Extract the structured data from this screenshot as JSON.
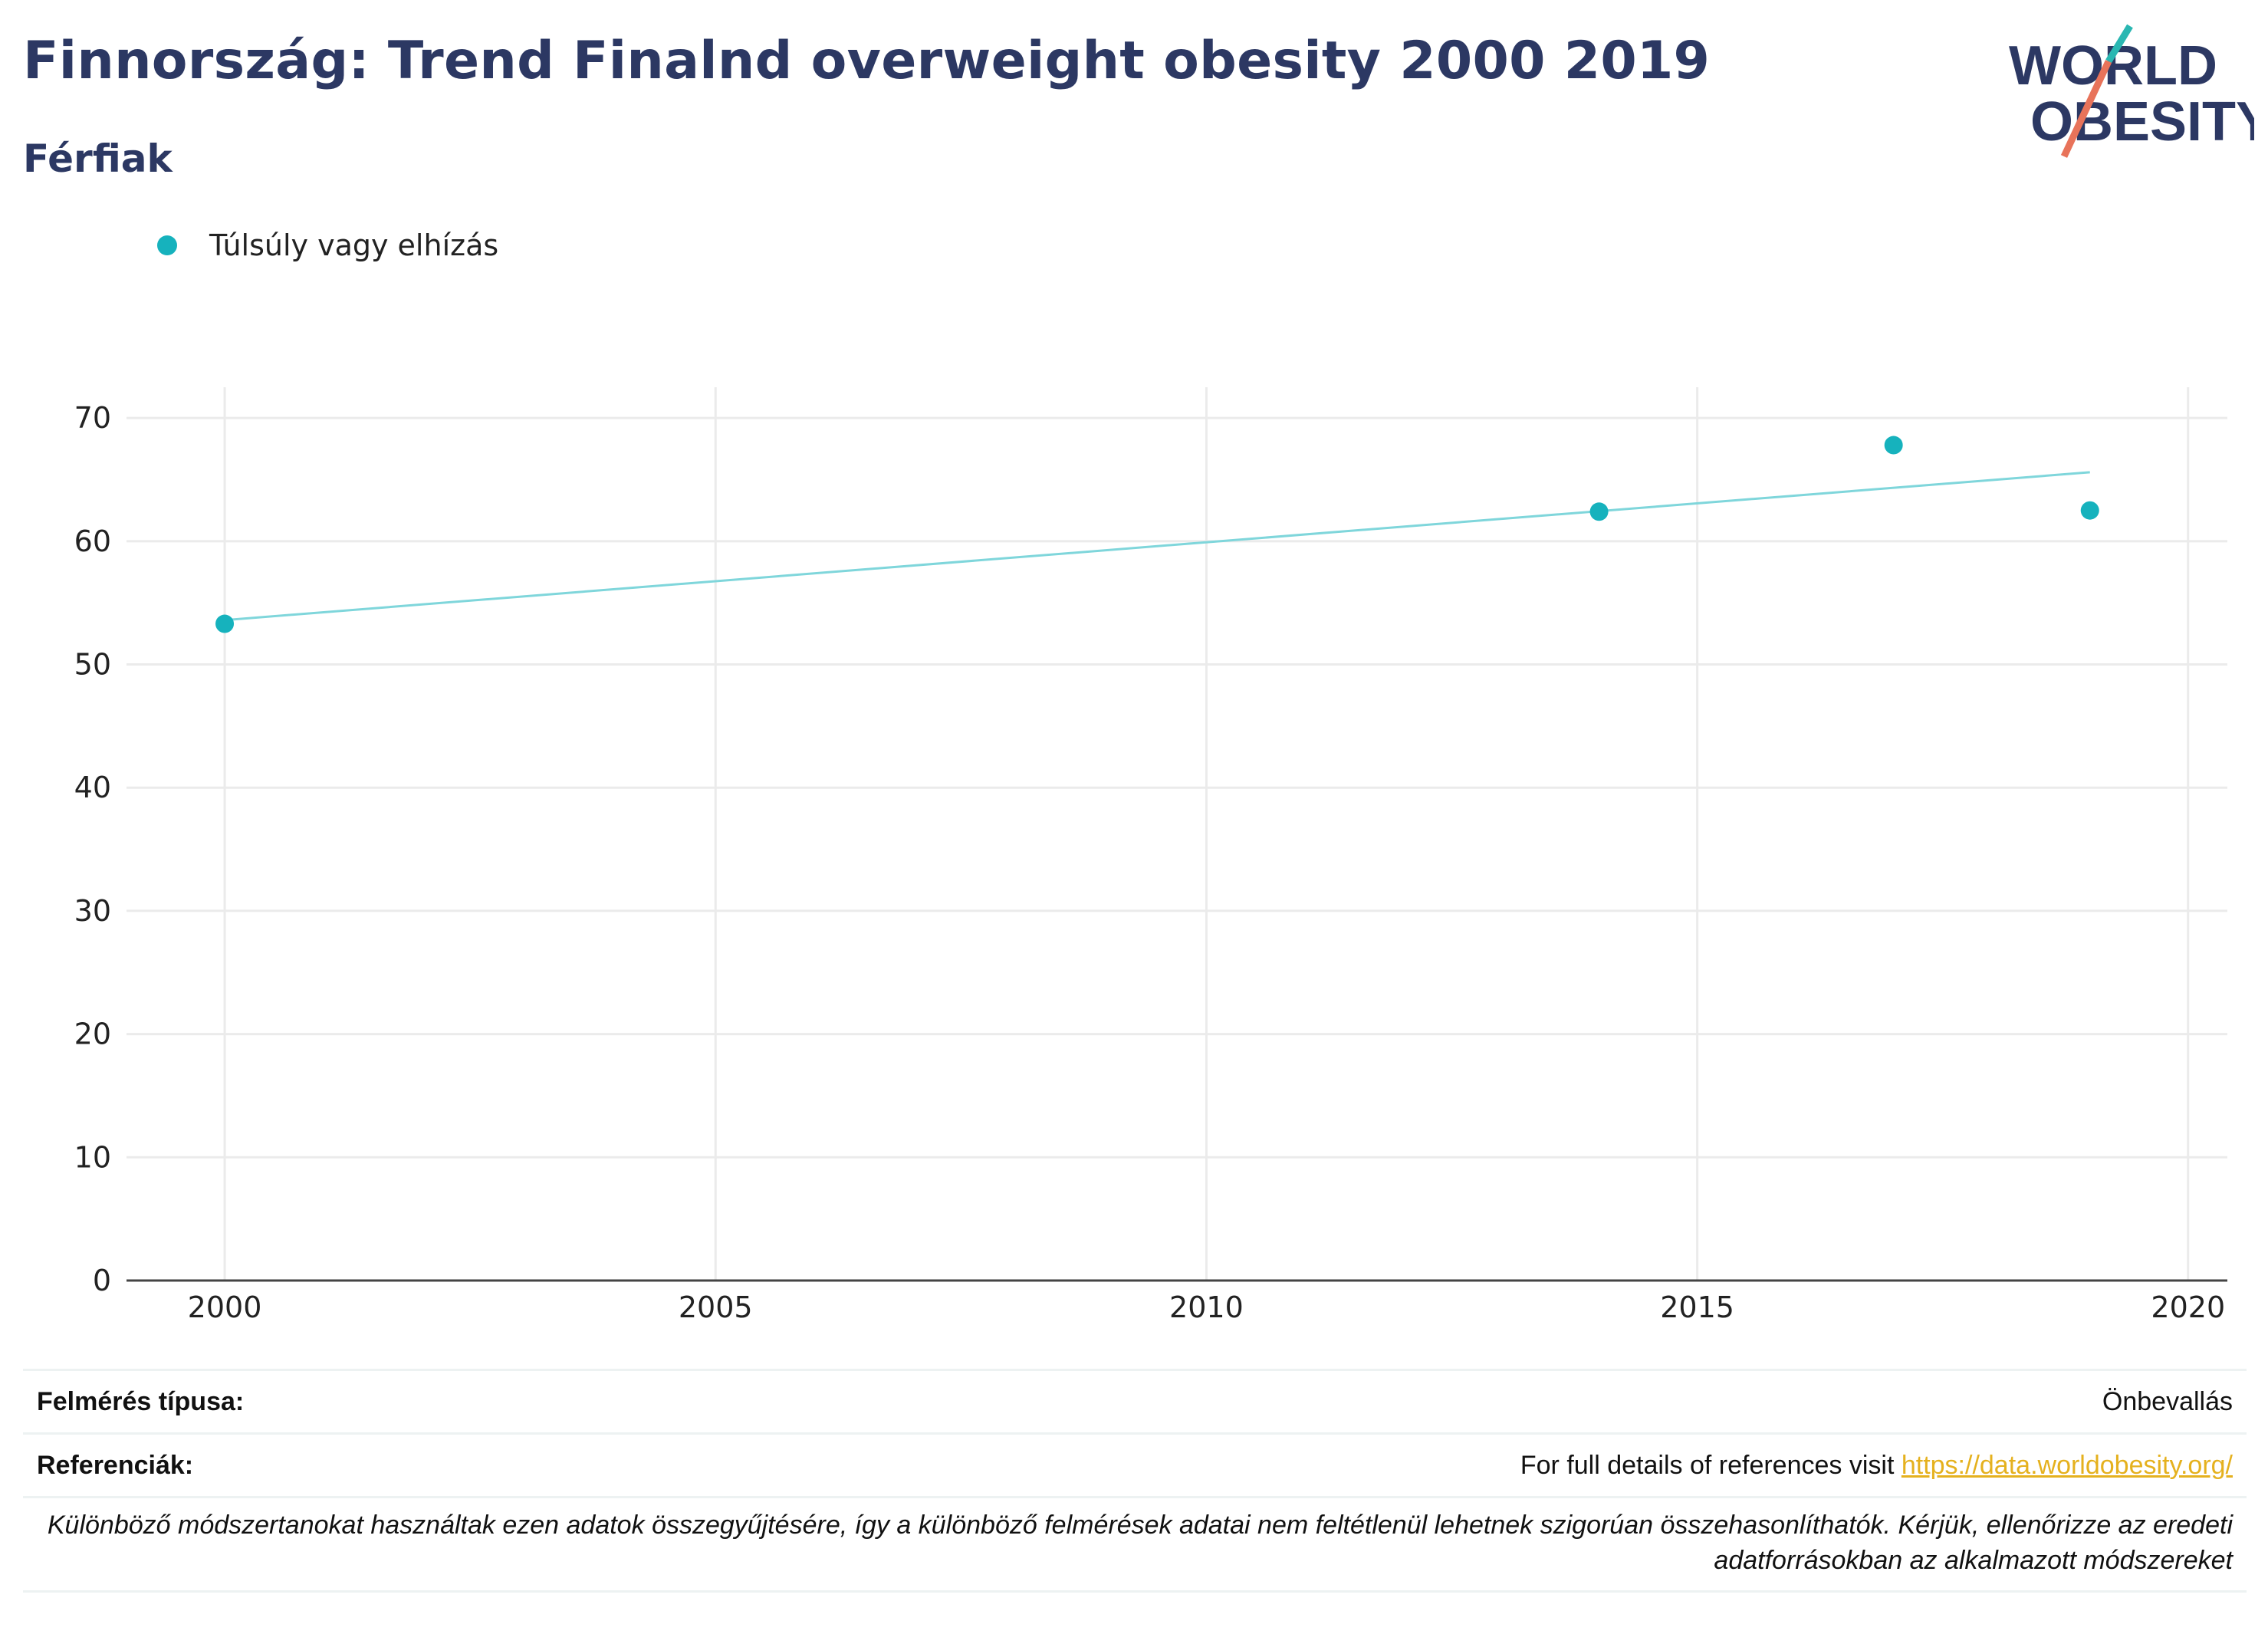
{
  "header": {
    "title": "Finnország: Trend Finalnd overweight obesity 2000 2019",
    "subtitle": "Férfiak"
  },
  "logo": {
    "line1": "WORLD",
    "line2": "OBESITY",
    "teal": "#2ab7b2",
    "coral": "#e8735a"
  },
  "chart_data": {
    "type": "scatter",
    "title": "",
    "xlabel": "",
    "ylabel": "",
    "xlim": [
      1999,
      2020.4
    ],
    "ylim": [
      0,
      72.5
    ],
    "x_ticks": [
      2000,
      2005,
      2010,
      2015,
      2020
    ],
    "y_ticks": [
      0,
      10,
      20,
      30,
      40,
      50,
      60,
      70
    ],
    "grid": true,
    "legend_position": "top-left",
    "series": [
      {
        "name": "Túlsúly vagy elhízás",
        "color": "#16b2bd",
        "points": [
          {
            "x": 2000,
            "y": 53.3
          },
          {
            "x": 2014,
            "y": 62.4
          },
          {
            "x": 2017,
            "y": 67.8
          },
          {
            "x": 2019,
            "y": 62.5
          }
        ]
      }
    ],
    "trendline": {
      "color": "#7fd6db",
      "points": [
        {
          "x": 2000,
          "y": 53.6
        },
        {
          "x": 2019,
          "y": 65.6
        }
      ]
    }
  },
  "footer": {
    "survey_label": "Felmérés típusa:",
    "survey_value": "Önbevallás",
    "references_label": "Referenciák:",
    "references_text": "For full details of references visit ",
    "references_link": "https://data.worldobesity.org/",
    "note": "Különböző módszertanokat használtak ezen adatok összegyűjtésére, így a különböző felmérések adatai nem feltétlenül lehetnek szigorúan összehasonlíthatók. Kérjük, ellenőrizze az eredeti adatforrásokban az alkalmazott módszereket"
  }
}
